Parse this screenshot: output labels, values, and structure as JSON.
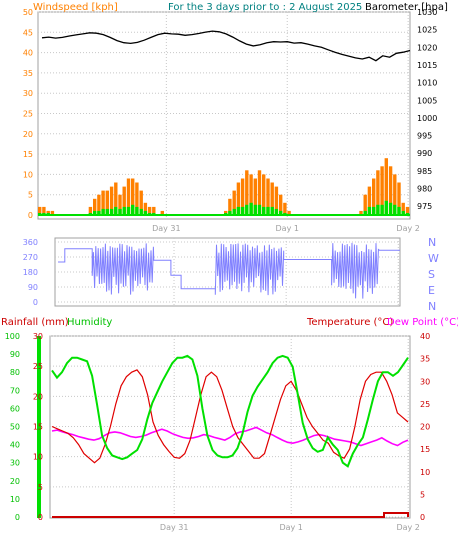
{
  "header": {
    "wind_label": "Windspeed [kph]",
    "title": "For the 3 days prior to : 2 August 2025",
    "baro_label": "Barometer [hpa]"
  },
  "legend": {
    "rain": "Rainfall (mm)",
    "humidity": "Humidity",
    "temperature": "Temperature (°C)",
    "dewpoint": "Dew Point (°C)"
  },
  "colors": {
    "wind_gust": "#ff8000",
    "wind_avg": "#00e000",
    "barometer": "#000000",
    "direction": "#8080ff",
    "rain": "#cc0000",
    "humidity": "#00e000",
    "temperature": "#e00000",
    "dewpoint": "#ff00ff",
    "frame": "#808080",
    "grid": "#c8c8c8"
  },
  "chart_data": [
    {
      "name": "wind-barometer",
      "type": "bar",
      "x_ticks": [
        "Day 31",
        "Day 1",
        "Day 2"
      ],
      "wind_ticks": [
        "50",
        "45",
        "40",
        "35",
        "30",
        "25",
        "20",
        "15",
        "10",
        "5",
        "0"
      ],
      "baro_ticks": [
        "1030",
        "1025",
        "1020",
        "1015",
        "1010",
        "1005",
        "1000",
        "995",
        "990",
        "985",
        "980",
        "975"
      ],
      "wind_ylim": [
        0,
        50
      ],
      "baro_ylim": [
        972.5,
        1030
      ],
      "gust_values": [
        2,
        2,
        1,
        1,
        0,
        0,
        0,
        0,
        0,
        0,
        0,
        0,
        2,
        4,
        5,
        6,
        6,
        7,
        8,
        5,
        7,
        9,
        9,
        8,
        6,
        3,
        2,
        2,
        0,
        1,
        0,
        0,
        0,
        0,
        0,
        0,
        0,
        0,
        0,
        0,
        0,
        0,
        0,
        0,
        1,
        4,
        6,
        8,
        9,
        11,
        10,
        9,
        11,
        10,
        9,
        8,
        7,
        5,
        3,
        1,
        0,
        0,
        0,
        0,
        0,
        0,
        0,
        0,
        0,
        0,
        0,
        0,
        0,
        0,
        0,
        0,
        1,
        5,
        7,
        9,
        11,
        12,
        14,
        12,
        10,
        8,
        3,
        2
      ],
      "avg_values": [
        0.5,
        0.5,
        0.5,
        0,
        0,
        0,
        0,
        0,
        0,
        0,
        0,
        0,
        0.5,
        1,
        1,
        1.5,
        1.5,
        1.5,
        2,
        1.5,
        2,
        2,
        2.5,
        2,
        1.5,
        1,
        0.5,
        0.5,
        0,
        0,
        0,
        0,
        0,
        0,
        0,
        0,
        0,
        0,
        0,
        0,
        0,
        0,
        0,
        0,
        0.5,
        1,
        1.5,
        2,
        2,
        2.5,
        3,
        2.5,
        2.5,
        2,
        2,
        2,
        1.5,
        1,
        0.5,
        0,
        0,
        0,
        0,
        0,
        0,
        0,
        0,
        0,
        0,
        0,
        0,
        0,
        0,
        0,
        0,
        0,
        0,
        1,
        2,
        2,
        2.5,
        2.5,
        3.5,
        3,
        2.5,
        2,
        1,
        0.5
      ],
      "baro_values": [
        1022.7,
        1022.9,
        1022.6,
        1022.8,
        1023.2,
        1023.5,
        1023.8,
        1024.1,
        1024.0,
        1023.6,
        1022.8,
        1021.9,
        1021.3,
        1021.1,
        1021.4,
        1022.0,
        1022.8,
        1023.6,
        1024.0,
        1023.8,
        1023.7,
        1023.4,
        1023.6,
        1023.9,
        1024.3,
        1024.6,
        1024.4,
        1023.8,
        1022.9,
        1021.8,
        1020.9,
        1020.4,
        1020.7,
        1021.3,
        1021.6,
        1021.5,
        1021.6,
        1021.2,
        1021.3,
        1020.9,
        1020.4,
        1020.0,
        1019.3,
        1018.6,
        1018.0,
        1017.5,
        1017.0,
        1016.7,
        1017.2,
        1016.2,
        1017.6,
        1017.2,
        1018.3,
        1018.6,
        1019.1
      ]
    },
    {
      "name": "wind-direction",
      "type": "scatter",
      "deg_ticks": [
        "360",
        "270",
        "180",
        "90",
        "0"
      ],
      "compass_ticks": [
        "N",
        "W",
        "S",
        "E",
        "N"
      ],
      "ylim": [
        0,
        360
      ],
      "segments": [
        {
          "from": 0.0,
          "to": 0.02,
          "kind": "steady",
          "value": 240
        },
        {
          "from": 0.02,
          "to": 0.1,
          "kind": "steady",
          "value": 320
        },
        {
          "from": 0.1,
          "to": 0.28,
          "kind": "variable",
          "low": 40,
          "high": 355
        },
        {
          "from": 0.28,
          "to": 0.33,
          "kind": "steady",
          "value": 250
        },
        {
          "from": 0.33,
          "to": 0.36,
          "kind": "steady",
          "value": 160
        },
        {
          "from": 0.36,
          "to": 0.46,
          "kind": "steady",
          "value": 80
        },
        {
          "from": 0.46,
          "to": 0.66,
          "kind": "variable",
          "low": 40,
          "high": 355
        },
        {
          "from": 0.66,
          "to": 0.8,
          "kind": "steady",
          "value": 255
        },
        {
          "from": 0.8,
          "to": 0.94,
          "kind": "variable",
          "low": 20,
          "high": 355
        },
        {
          "from": 0.94,
          "to": 1.0,
          "kind": "steady",
          "value": 310
        }
      ]
    },
    {
      "name": "temp-humidity-rain",
      "type": "line",
      "x_ticks": [
        "Day 31",
        "Day 1",
        "Day 2"
      ],
      "humidity_ticks": [
        "100",
        "90",
        "80",
        "70",
        "60",
        "50",
        "40",
        "30",
        "20",
        "10",
        "0"
      ],
      "rain_ticks": [
        "30",
        "25",
        "20",
        "15",
        "10",
        "5",
        "0"
      ],
      "temp_ticks": [
        "40",
        "35",
        "30",
        "25",
        "20",
        "15",
        "10",
        "5",
        "0"
      ],
      "humidity_ylim": [
        0,
        100
      ],
      "rain_ylim": [
        0,
        30
      ],
      "temp_ylim": [
        0,
        40
      ],
      "temperature": [
        20,
        19.5,
        19,
        18.5,
        17.5,
        16,
        14,
        13,
        12,
        13,
        16,
        20,
        25,
        29,
        31,
        32,
        32.5,
        31,
        27,
        21,
        18,
        16,
        14.5,
        13.2,
        13,
        14,
        17,
        22,
        27,
        31,
        32,
        31,
        28,
        24,
        20,
        17.5,
        16,
        14.5,
        13,
        13,
        14,
        18,
        22,
        26,
        29,
        30,
        28,
        25,
        22,
        20,
        18.5,
        17,
        16.3,
        14.3,
        13.5,
        13,
        15,
        20,
        26,
        30,
        31.5,
        32,
        32,
        30,
        27,
        23,
        22,
        21
      ],
      "dewpoint": [
        19,
        19.2,
        18.8,
        18.5,
        18.2,
        17.8,
        17.5,
        17.2,
        17.0,
        17.3,
        18,
        18.6,
        18.8,
        18.6,
        18.2,
        17.8,
        17.6,
        17.8,
        18.1,
        18.6,
        19.0,
        19.4,
        19.0,
        18.4,
        18.0,
        17.6,
        17.4,
        17.5,
        17.8,
        18.2,
        18.0,
        17.6,
        17.3,
        17.0,
        17.6,
        18.4,
        18.8,
        19.0,
        19.4,
        19.8,
        19.2,
        18.6,
        18.2,
        17.6,
        17.0,
        16.5,
        16.3,
        16.6,
        17.0,
        17.5,
        18.0,
        18.2,
        18.0,
        17.6,
        17.2,
        17.0,
        16.8,
        16.6,
        16.2,
        15.8,
        16.2,
        16.6,
        17.0,
        17.5,
        16.8,
        16.2,
        15.8,
        16.5,
        17.0
      ],
      "humidity": [
        81,
        77,
        80,
        85,
        88,
        88,
        87,
        86,
        78,
        62,
        45,
        38,
        34,
        33,
        32,
        33,
        35,
        37,
        43,
        54,
        63,
        69,
        75,
        80,
        85,
        88,
        88,
        89,
        87,
        78,
        60,
        45,
        37,
        34,
        33,
        33,
        34,
        38,
        46,
        58,
        67,
        72,
        76,
        80,
        85,
        88,
        89,
        88,
        83,
        68,
        52,
        43,
        38,
        36,
        37,
        44,
        40,
        37,
        30,
        28,
        35,
        40,
        44,
        54,
        65,
        75,
        80,
        80,
        78,
        80,
        84,
        88
      ]
    }
  ]
}
